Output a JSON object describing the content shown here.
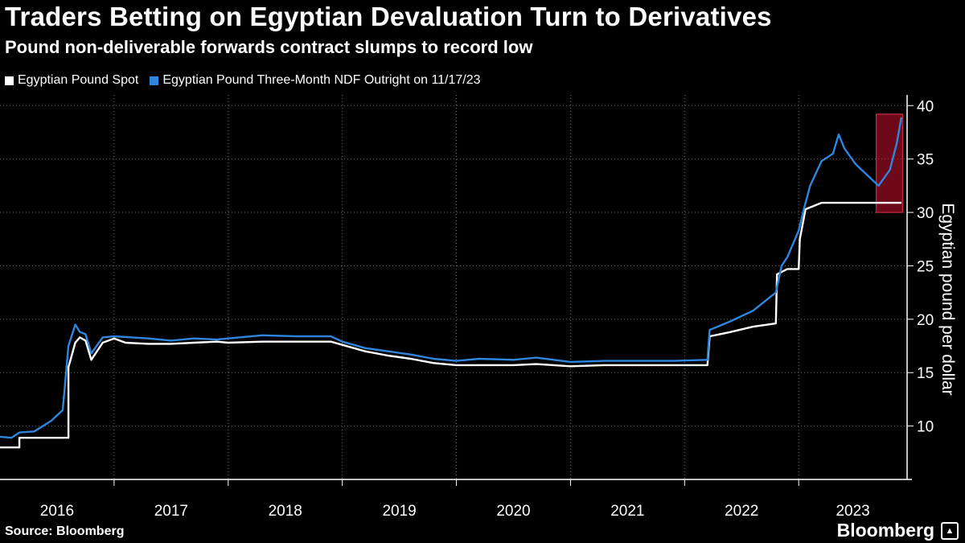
{
  "chart_data": {
    "type": "line",
    "title": "Traders Betting on Egyptian Devaluation Turn to Derivatives",
    "subtitle": "Pound non-deliverable forwards contract slumps to record low",
    "ylabel": "Egyptian pound per dollar",
    "xlabel": "",
    "ylim": [
      5,
      41
    ],
    "yticks": [
      10,
      15,
      20,
      25,
      30,
      35,
      40
    ],
    "xticks": [
      "2016",
      "2017",
      "2018",
      "2019",
      "2020",
      "2021",
      "2022",
      "2023"
    ],
    "xrange": [
      2016.0,
      2023.95
    ],
    "grid": "vertical dotted at year boundaries",
    "legend_position": "top-left",
    "highlight": {
      "label": "record low highlight",
      "x": [
        2023.68,
        2023.91
      ],
      "y": [
        30.0,
        39.2
      ],
      "color": "#c8102e"
    },
    "series": [
      {
        "name": "Egyptian Pound Spot",
        "color": "#ffffff",
        "x": [
          2016.0,
          2016.17,
          2016.17,
          2016.6,
          2016.6,
          2016.66,
          2016.7,
          2016.75,
          2016.8,
          2016.9,
          2017.0,
          2017.05,
          2017.1,
          2017.3,
          2017.5,
          2017.7,
          2017.9,
          2018.0,
          2018.3,
          2018.6,
          2018.9,
          2019.0,
          2019.2,
          2019.4,
          2019.6,
          2019.8,
          2020.0,
          2020.2,
          2020.5,
          2020.7,
          2021.0,
          2021.3,
          2021.6,
          2021.9,
          2022.2,
          2022.22,
          2022.4,
          2022.6,
          2022.8,
          2022.81,
          2022.9,
          2023.0,
          2023.01,
          2023.06,
          2023.2,
          2023.5,
          2023.7,
          2023.9
        ],
        "values": [
          8.0,
          8.0,
          8.9,
          8.9,
          15.5,
          17.8,
          18.3,
          18.0,
          16.2,
          17.8,
          18.2,
          18.0,
          17.8,
          17.7,
          17.7,
          17.8,
          17.9,
          17.8,
          17.9,
          17.9,
          17.9,
          17.6,
          17.0,
          16.6,
          16.3,
          15.9,
          15.7,
          15.7,
          15.7,
          15.8,
          15.6,
          15.7,
          15.7,
          15.7,
          15.7,
          18.4,
          18.8,
          19.3,
          19.6,
          24.2,
          24.7,
          24.7,
          27.5,
          30.3,
          30.9,
          30.9,
          30.9,
          30.9
        ]
      },
      {
        "name": "Egyptian Pound Three-Month NDF Outright on 11/17/23",
        "color": "#2e86de",
        "x": [
          2016.0,
          2016.1,
          2016.17,
          2016.3,
          2016.45,
          2016.55,
          2016.6,
          2016.66,
          2016.7,
          2016.75,
          2016.8,
          2016.9,
          2017.0,
          2017.3,
          2017.5,
          2017.7,
          2017.9,
          2018.0,
          2018.3,
          2018.6,
          2018.9,
          2019.0,
          2019.2,
          2019.4,
          2019.6,
          2019.8,
          2020.0,
          2020.2,
          2020.5,
          2020.7,
          2021.0,
          2021.3,
          2021.6,
          2021.9,
          2022.2,
          2022.22,
          2022.4,
          2022.6,
          2022.8,
          2022.85,
          2022.9,
          2023.0,
          2023.05,
          2023.1,
          2023.2,
          2023.3,
          2023.35,
          2023.4,
          2023.5,
          2023.6,
          2023.7,
          2023.8,
          2023.86,
          2023.9
        ],
        "values": [
          9.0,
          8.9,
          9.4,
          9.5,
          10.5,
          11.5,
          17.5,
          19.5,
          18.8,
          18.6,
          16.8,
          18.3,
          18.4,
          18.2,
          18.0,
          18.2,
          18.1,
          18.2,
          18.5,
          18.4,
          18.4,
          17.9,
          17.3,
          17.0,
          16.7,
          16.3,
          16.1,
          16.3,
          16.2,
          16.4,
          16.0,
          16.1,
          16.1,
          16.1,
          16.2,
          19.0,
          19.8,
          20.8,
          22.5,
          25.0,
          25.8,
          28.3,
          30.5,
          32.5,
          34.8,
          35.5,
          37.3,
          36.0,
          34.5,
          33.5,
          32.5,
          34.0,
          36.5,
          38.9
        ]
      }
    ]
  },
  "legend": {
    "items": [
      {
        "label": "Egyptian Pound Spot",
        "color": "#ffffff"
      },
      {
        "label": "Egyptian Pound Three-Month NDF Outright on 11/17/23",
        "color": "#2e86de"
      }
    ]
  },
  "footer": {
    "source": "Source: Bloomberg",
    "brand": "Bloomberg"
  }
}
